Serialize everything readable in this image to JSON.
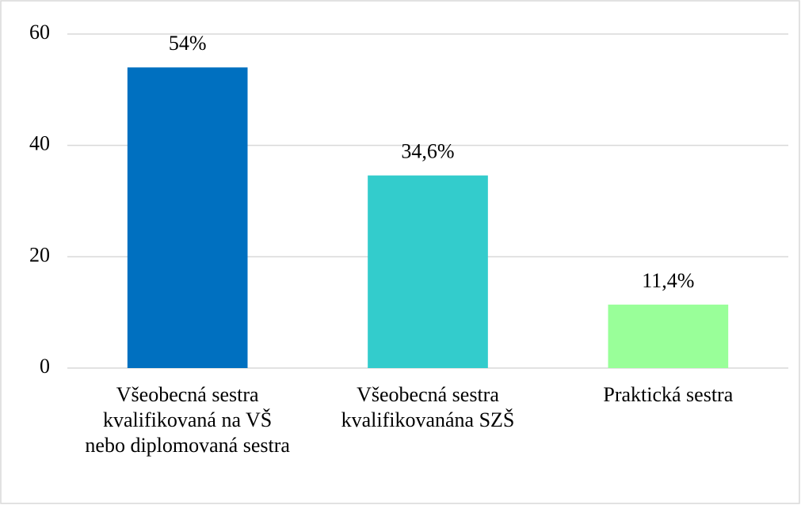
{
  "chart_data": {
    "type": "bar",
    "categories": [
      "Všeobecná sestra kvalifikovaná na VŠ nebo diplomovaná sestra",
      "Všeobecná sestra kvalifikovanána SZŠ",
      "Praktická sestra"
    ],
    "values": [
      54,
      34.6,
      11.4
    ],
    "value_labels": [
      "54%",
      "34,6%",
      "11,4%"
    ],
    "colors": [
      "#0070c0",
      "#33cccc",
      "#99ff99"
    ],
    "ylim": [
      0,
      60
    ],
    "yticks": [
      0,
      20,
      40,
      60
    ],
    "grid": true
  }
}
